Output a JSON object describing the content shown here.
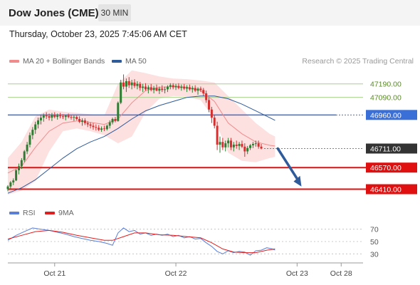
{
  "header": {
    "title": "Dow Jones (CME)",
    "timeframe": "30 MIN"
  },
  "timestamp": "Thursday, October 23, 2025 7:45:06 AM CET",
  "legend": {
    "main": [
      {
        "label": "MA 20 + Bollinger Bands",
        "color": "#f08c8c"
      },
      {
        "label": "MA 50",
        "color": "#2f5b9a"
      }
    ],
    "rsi": [
      {
        "label": "RSI",
        "color": "#5b7fd6"
      },
      {
        "label": "9MA",
        "color": "#e02020"
      }
    ]
  },
  "copyright": "Research © 2025 Trading Central",
  "colors": {
    "up": "#2e7d32",
    "down": "#d32f2f",
    "level_red": "#e01010",
    "level_blue": "#3a6fd8",
    "level_green": "#a8d08d",
    "arrow": "#2f5b9a",
    "band": "#fde0e0",
    "current": "#333333"
  },
  "chart_data": [
    {
      "type": "candlestick",
      "instrument": "Dow Jones (CME)",
      "timeframe": "30 MIN",
      "ylim": [
        46360,
        47310
      ],
      "x_ticks": [
        {
          "label": "Oct 21",
          "index": 17
        },
        {
          "label": "Oct 22",
          "index": 61
        },
        {
          "label": "Oct 23",
          "index": 105
        },
        {
          "label": "Oct 28",
          "index": 121
        }
      ],
      "candles": [
        [
          46410,
          46440,
          46395,
          46430
        ],
        [
          46430,
          46470,
          46415,
          46460
        ],
        [
          46460,
          46490,
          46440,
          46475
        ],
        [
          46475,
          46560,
          46470,
          46550
        ],
        [
          46550,
          46600,
          46520,
          46580
        ],
        [
          46580,
          46640,
          46560,
          46625
        ],
        [
          46625,
          46700,
          46610,
          46690
        ],
        [
          46690,
          46760,
          46670,
          46740
        ],
        [
          46740,
          46830,
          46720,
          46810
        ],
        [
          46810,
          46870,
          46780,
          46850
        ],
        [
          46850,
          46910,
          46820,
          46890
        ],
        [
          46890,
          46940,
          46860,
          46920
        ],
        [
          46920,
          46960,
          46890,
          46940
        ],
        [
          46940,
          46970,
          46910,
          46955
        ],
        [
          46955,
          46980,
          46930,
          46950
        ],
        [
          46950,
          46970,
          46920,
          46940
        ],
        [
          46940,
          46975,
          46915,
          46960
        ],
        [
          46960,
          46980,
          46935,
          46945
        ],
        [
          46945,
          46970,
          46925,
          46955
        ],
        [
          46955,
          46975,
          46935,
          46950
        ],
        [
          46950,
          46965,
          46930,
          46945
        ],
        [
          46945,
          46960,
          46920,
          46955
        ],
        [
          46955,
          46970,
          46935,
          46945
        ],
        [
          46945,
          46960,
          46925,
          46940
        ],
        [
          46940,
          46955,
          46915,
          46945
        ],
        [
          46945,
          46955,
          46920,
          46930
        ],
        [
          46930,
          46950,
          46900,
          46910
        ],
        [
          46910,
          46935,
          46880,
          46920
        ],
        [
          46920,
          46935,
          46885,
          46900
        ],
        [
          46900,
          46915,
          46870,
          46890
        ],
        [
          46890,
          46905,
          46860,
          46880
        ],
        [
          46880,
          46900,
          46850,
          46870
        ],
        [
          46870,
          46890,
          46845,
          46865
        ],
        [
          46865,
          46885,
          46840,
          46850
        ],
        [
          46850,
          46875,
          46835,
          46860
        ],
        [
          46860,
          46880,
          46840,
          46855
        ],
        [
          46855,
          46890,
          46845,
          46880
        ],
        [
          46880,
          46920,
          46860,
          46905
        ],
        [
          46905,
          46940,
          46890,
          46930
        ],
        [
          46930,
          46945,
          46905,
          46915
        ],
        [
          46915,
          47060,
          46910,
          47050
        ],
        [
          47050,
          47220,
          47040,
          47200
        ],
        [
          47200,
          47260,
          47150,
          47170
        ],
        [
          47170,
          47230,
          47130,
          47210
        ],
        [
          47210,
          47240,
          47160,
          47180
        ],
        [
          47180,
          47220,
          47150,
          47200
        ],
        [
          47200,
          47225,
          47160,
          47175
        ],
        [
          47175,
          47210,
          47150,
          47190
        ],
        [
          47190,
          47205,
          47140,
          47160
        ],
        [
          47160,
          47190,
          47130,
          47170
        ],
        [
          47170,
          47195,
          47140,
          47150
        ],
        [
          47150,
          47180,
          47120,
          47165
        ],
        [
          47165,
          47190,
          47135,
          47145
        ],
        [
          47145,
          47175,
          47120,
          47160
        ],
        [
          47160,
          47185,
          47135,
          47140
        ],
        [
          47140,
          47170,
          47115,
          47155
        ],
        [
          47155,
          47180,
          47130,
          47145
        ],
        [
          47145,
          47170,
          47120,
          47150
        ],
        [
          47150,
          47180,
          47130,
          47170
        ],
        [
          47170,
          47195,
          47150,
          47180
        ],
        [
          47180,
          47195,
          47150,
          47165
        ],
        [
          47165,
          47190,
          47145,
          47175
        ],
        [
          47175,
          47195,
          47150,
          47160
        ],
        [
          47160,
          47185,
          47140,
          47170
        ],
        [
          47170,
          47190,
          47145,
          47155
        ],
        [
          47155,
          47180,
          47130,
          47165
        ],
        [
          47165,
          47185,
          47140,
          47150
        ],
        [
          47150,
          47175,
          47125,
          47160
        ],
        [
          47160,
          47180,
          47130,
          47140
        ],
        [
          47140,
          47165,
          47110,
          47155
        ],
        [
          47155,
          47170,
          47130,
          47145
        ],
        [
          47145,
          47160,
          47100,
          47120
        ],
        [
          47120,
          47140,
          47050,
          47070
        ],
        [
          47070,
          47090,
          46980,
          47000
        ],
        [
          47000,
          47020,
          46900,
          46940
        ],
        [
          46940,
          46960,
          46860,
          46880
        ],
        [
          46880,
          46910,
          46700,
          46740
        ],
        [
          46740,
          46800,
          46680,
          46760
        ],
        [
          46760,
          46790,
          46700,
          46720
        ],
        [
          46720,
          46770,
          46690,
          46750
        ],
        [
          46750,
          46790,
          46720,
          46770
        ],
        [
          46770,
          46790,
          46700,
          46720
        ],
        [
          46720,
          46760,
          46690,
          46740
        ],
        [
          46740,
          46770,
          46710,
          46730
        ],
        [
          46730,
          46760,
          46700,
          46745
        ],
        [
          46745,
          46770,
          46715,
          46725
        ],
        [
          46725,
          46750,
          46650,
          46690
        ],
        [
          46690,
          46730,
          46670,
          46715
        ],
        [
          46715,
          46745,
          46700,
          46735
        ],
        [
          46735,
          46760,
          46715,
          46745
        ],
        [
          46745,
          46770,
          46725,
          46750
        ],
        [
          46750,
          46770,
          46710,
          46725
        ],
        [
          46725,
          46745,
          46705,
          46711
        ]
      ],
      "ma20": [
        [
          0,
          46530
        ],
        [
          5,
          46580
        ],
        [
          10,
          46720
        ],
        [
          15,
          46840
        ],
        [
          20,
          46900
        ],
        [
          25,
          46915
        ],
        [
          30,
          46905
        ],
        [
          35,
          46890
        ],
        [
          40,
          46930
        ],
        [
          45,
          47050
        ],
        [
          50,
          47140
        ],
        [
          55,
          47165
        ],
        [
          60,
          47170
        ],
        [
          65,
          47165
        ],
        [
          70,
          47140
        ],
        [
          75,
          47060
        ],
        [
          80,
          46900
        ],
        [
          85,
          46820
        ],
        [
          90,
          46760
        ],
        [
          95,
          46735
        ],
        [
          97,
          46730
        ]
      ],
      "bb_upper": [
        [
          0,
          46640
        ],
        [
          5,
          46760
        ],
        [
          10,
          46950
        ],
        [
          15,
          47000
        ],
        [
          20,
          46985
        ],
        [
          25,
          46975
        ],
        [
          30,
          46965
        ],
        [
          35,
          46955
        ],
        [
          40,
          47190
        ],
        [
          45,
          47290
        ],
        [
          50,
          47270
        ],
        [
          55,
          47245
        ],
        [
          60,
          47230
        ],
        [
          65,
          47225
        ],
        [
          70,
          47215
        ],
        [
          75,
          47200
        ],
        [
          80,
          47100
        ],
        [
          85,
          47000
        ],
        [
          90,
          46900
        ],
        [
          95,
          46820
        ],
        [
          97,
          46800
        ]
      ],
      "bb_lower": [
        [
          0,
          46370
        ],
        [
          5,
          46400
        ],
        [
          10,
          46470
        ],
        [
          15,
          46690
        ],
        [
          20,
          46840
        ],
        [
          25,
          46860
        ],
        [
          30,
          46840
        ],
        [
          35,
          46810
        ],
        [
          40,
          46750
        ],
        [
          45,
          46800
        ],
        [
          50,
          46980
        ],
        [
          55,
          47080
        ],
        [
          60,
          47100
        ],
        [
          65,
          47095
        ],
        [
          70,
          47070
        ],
        [
          75,
          46930
        ],
        [
          80,
          46680
        ],
        [
          85,
          46620
        ],
        [
          90,
          46610
        ],
        [
          95,
          46640
        ],
        [
          97,
          46650
        ]
      ],
      "ma50": [
        [
          0,
          46380
        ],
        [
          5,
          46420
        ],
        [
          10,
          46480
        ],
        [
          15,
          46560
        ],
        [
          20,
          46640
        ],
        [
          25,
          46710
        ],
        [
          30,
          46760
        ],
        [
          35,
          46800
        ],
        [
          40,
          46860
        ],
        [
          45,
          46930
        ],
        [
          50,
          46990
        ],
        [
          55,
          47030
        ],
        [
          60,
          47060
        ],
        [
          65,
          47090
        ],
        [
          70,
          47100
        ],
        [
          75,
          47100
        ],
        [
          80,
          47080
        ],
        [
          85,
          47040
        ],
        [
          90,
          46990
        ],
        [
          95,
          46940
        ],
        [
          97,
          46920
        ]
      ],
      "levels": [
        {
          "value": 47190,
          "label": "47190.00",
          "kind": "resistance",
          "color": "#a8d08d"
        },
        {
          "value": 47090,
          "label": "47090.00",
          "kind": "resistance",
          "color": "#a8d08d"
        },
        {
          "value": 46960,
          "label": "46960.00",
          "kind": "pivot",
          "color": "#3a6fd8"
        },
        {
          "value": 46711,
          "label": "46711.00",
          "kind": "current",
          "color": "#333333"
        },
        {
          "value": 46570,
          "label": "46570.00",
          "kind": "support",
          "color": "#e01010"
        },
        {
          "value": 46410,
          "label": "46410.00",
          "kind": "support",
          "color": "#e01010"
        }
      ],
      "arrow": {
        "from_index": 98,
        "from_value": 46711,
        "to_index": 104,
        "to_value": 46430
      }
    },
    {
      "type": "line",
      "name": "RSI",
      "ylim": [
        20,
        80
      ],
      "y_ticks": [
        70,
        50,
        30
      ],
      "rsi": [
        [
          0,
          52
        ],
        [
          3,
          60
        ],
        [
          6,
          66
        ],
        [
          9,
          72
        ],
        [
          12,
          70
        ],
        [
          15,
          68
        ],
        [
          18,
          65
        ],
        [
          21,
          62
        ],
        [
          24,
          58
        ],
        [
          27,
          55
        ],
        [
          30,
          52
        ],
        [
          33,
          50
        ],
        [
          36,
          47
        ],
        [
          38,
          44
        ],
        [
          40,
          64
        ],
        [
          42,
          72
        ],
        [
          44,
          66
        ],
        [
          46,
          68
        ],
        [
          48,
          62
        ],
        [
          50,
          64
        ],
        [
          52,
          60
        ],
        [
          54,
          62
        ],
        [
          56,
          60
        ],
        [
          58,
          62
        ],
        [
          60,
          58
        ],
        [
          62,
          60
        ],
        [
          64,
          56
        ],
        [
          66,
          58
        ],
        [
          68,
          54
        ],
        [
          70,
          55
        ],
        [
          72,
          48
        ],
        [
          74,
          42
        ],
        [
          76,
          34
        ],
        [
          78,
          30
        ],
        [
          80,
          35
        ],
        [
          82,
          32
        ],
        [
          84,
          34
        ],
        [
          86,
          33
        ],
        [
          88,
          28
        ],
        [
          90,
          35
        ],
        [
          92,
          36
        ],
        [
          94,
          40
        ],
        [
          96,
          38
        ],
        [
          97,
          36
        ]
      ],
      "ma9": [
        [
          0,
          54
        ],
        [
          5,
          60
        ],
        [
          10,
          66
        ],
        [
          15,
          68
        ],
        [
          20,
          65
        ],
        [
          25,
          60
        ],
        [
          30,
          56
        ],
        [
          35,
          52
        ],
        [
          38,
          52
        ],
        [
          42,
          58
        ],
        [
          46,
          64
        ],
        [
          50,
          64
        ],
        [
          55,
          61
        ],
        [
          60,
          60
        ],
        [
          65,
          58
        ],
        [
          70,
          56
        ],
        [
          74,
          48
        ],
        [
          78,
          38
        ],
        [
          82,
          33
        ],
        [
          86,
          32
        ],
        [
          90,
          32
        ],
        [
          94,
          36
        ],
        [
          97,
          38
        ]
      ]
    }
  ]
}
